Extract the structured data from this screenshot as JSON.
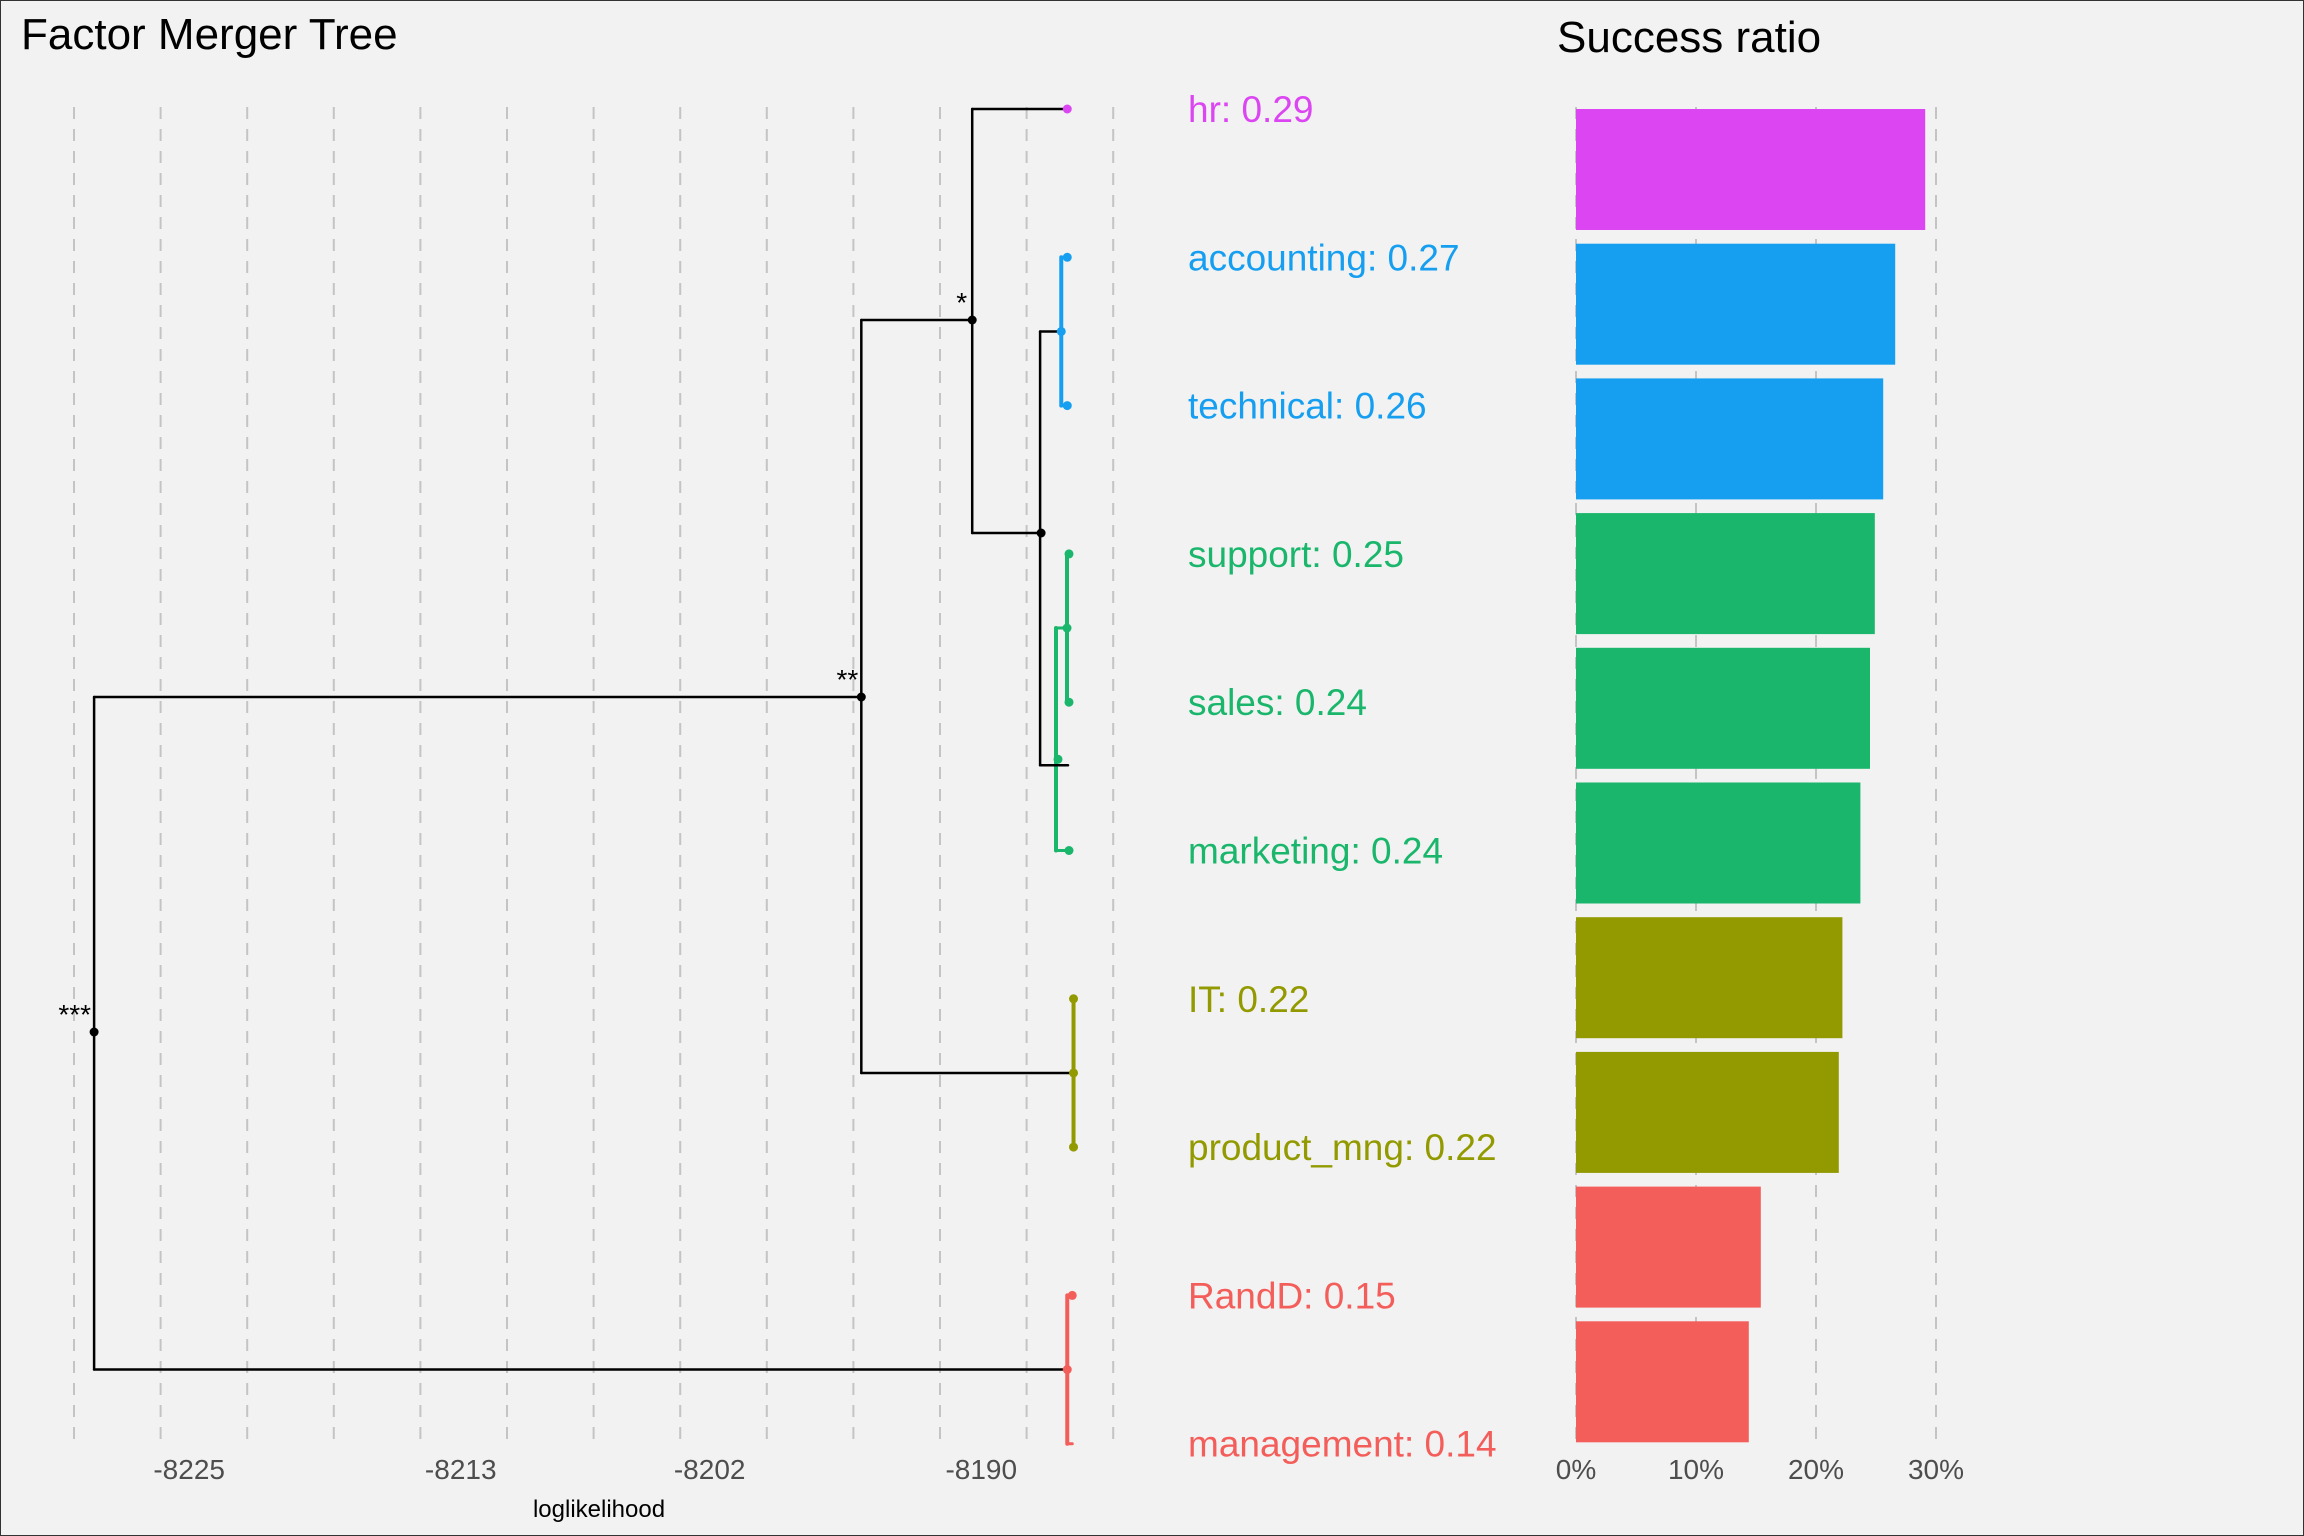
{
  "chart_data": [
    {
      "type": "dendrogram",
      "title": "Factor Merger Tree",
      "xlabel": "loglikelihood",
      "xticks": [
        -8225,
        -8213,
        -8202,
        -8190
      ],
      "grid": true,
      "leaves": [
        {
          "label": "hr: 0.29",
          "group": "hr"
        },
        {
          "label": "accounting: 0.27",
          "group": "accounting_technical"
        },
        {
          "label": "technical: 0.26",
          "group": "accounting_technical"
        },
        {
          "label": "support: 0.25",
          "group": "support_sales_marketing"
        },
        {
          "label": "sales: 0.24",
          "group": "support_sales_marketing"
        },
        {
          "label": "marketing: 0.24",
          "group": "support_sales_marketing"
        },
        {
          "label": "IT: 0.22",
          "group": "it_product"
        },
        {
          "label": "product_mng: 0.22",
          "group": "it_product"
        },
        {
          "label": "RandD: 0.15",
          "group": "randd_management"
        },
        {
          "label": "management: 0.14",
          "group": "randd_management"
        }
      ],
      "merges": [
        {
          "members": [
            "support",
            "sales"
          ],
          "loglikelihood": -8186.4,
          "significance": ""
        },
        {
          "members": [
            "support+sales",
            "marketing"
          ],
          "loglikelihood": -8186.3,
          "significance": ""
        },
        {
          "members": [
            "accounting",
            "technical"
          ],
          "loglikelihood": -8186.2,
          "significance": ""
        },
        {
          "members": [
            "IT",
            "product_mng"
          ],
          "loglikelihood": -8186.1,
          "significance": ""
        },
        {
          "members": [
            "RandD",
            "management"
          ],
          "loglikelihood": -8186.2,
          "significance": ""
        },
        {
          "members": [
            "accounting+technical",
            "support+sales+marketing"
          ],
          "loglikelihood": -8187.4,
          "significance": ""
        },
        {
          "members": [
            "hr",
            "accounting+technical+support+sales+marketing"
          ],
          "loglikelihood": -8190.4,
          "significance": "*"
        },
        {
          "members": [
            "hr+...",
            "IT+product_mng"
          ],
          "loglikelihood": -8195.3,
          "significance": "**"
        },
        {
          "members": [
            "hr+...+product_mng",
            "RandD+management"
          ],
          "loglikelihood": -8229.2,
          "significance": "***"
        }
      ]
    },
    {
      "type": "bar",
      "orientation": "horizontal",
      "title": "Success ratio",
      "xticks": [
        "0%",
        "10%",
        "20%",
        "30%"
      ],
      "xlim": [
        0,
        0.3
      ],
      "grid": true,
      "categories": [
        "hr",
        "accounting",
        "technical",
        "support",
        "sales",
        "marketing",
        "IT",
        "product_mng",
        "RandD",
        "management"
      ],
      "values": [
        0.291,
        0.266,
        0.256,
        0.249,
        0.245,
        0.237,
        0.222,
        0.219,
        0.154,
        0.144
      ],
      "groups": [
        "hr",
        "accounting_technical",
        "accounting_technical",
        "support_sales_marketing",
        "support_sales_marketing",
        "support_sales_marketing",
        "it_product",
        "it_product",
        "randd_management",
        "randd_management"
      ]
    }
  ],
  "colors": {
    "hr": "#dc45f2",
    "accounting_technical": "#169ff0",
    "support_sales_marketing": "#1ab66c",
    "it_product": "#939a00",
    "randd_management": "#f45e5a",
    "tree_line": "#000000",
    "grid": "#c4c4c4",
    "background": "#f2f2f2"
  }
}
